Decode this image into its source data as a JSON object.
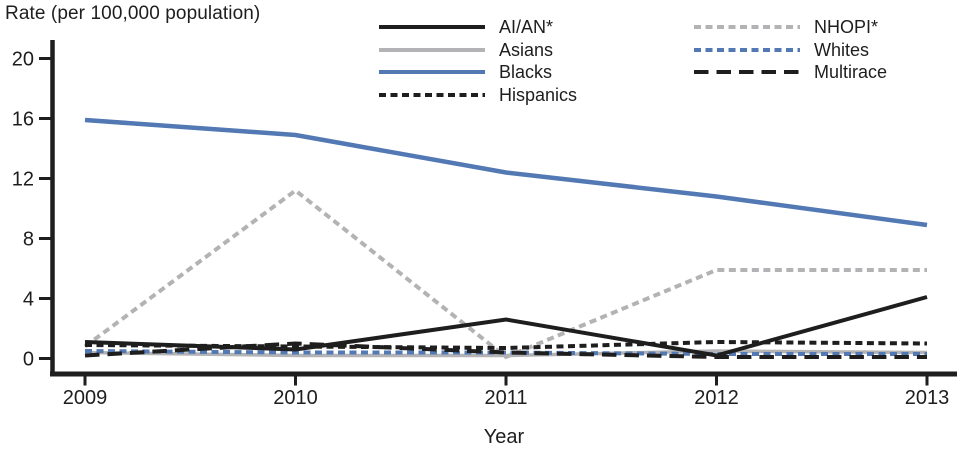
{
  "chart_data": {
    "type": "line",
    "title": "Rate (per 100,000 population)",
    "xlabel": "Year",
    "x": [
      2009,
      2010,
      2011,
      2012,
      2013
    ],
    "ylim": [
      0,
      20
    ],
    "yticks": [
      0,
      4,
      8,
      12,
      16,
      20
    ],
    "grid": false,
    "legend_position": "top-center, two columns",
    "colors": {
      "black": "#1e1e1e",
      "gray": "#b3b3b5",
      "blue": "#5279b4"
    },
    "series": [
      {
        "name": "AI/AN*",
        "color": "#1e1e1e",
        "line_style": "solid",
        "stroke_width": 4,
        "values": [
          1.1,
          0.6,
          2.6,
          0.2,
          4.1
        ]
      },
      {
        "name": "Asians",
        "color": "#b3b3b5",
        "line_style": "solid",
        "stroke_width": 3.5,
        "values": [
          0.4,
          0.2,
          0.2,
          0.5,
          0.4
        ]
      },
      {
        "name": "Blacks",
        "color": "#5279b4",
        "line_style": "solid",
        "stroke_width": 4.5,
        "values": [
          15.9,
          14.9,
          12.4,
          10.8,
          8.9
        ]
      },
      {
        "name": "Hispanics",
        "color": "#1e1e1e",
        "line_style": "short-dash",
        "stroke_width": 4,
        "values": [
          0.9,
          0.8,
          0.7,
          1.1,
          1.0
        ]
      },
      {
        "name": "NHOPI*",
        "color": "#b3b3b5",
        "line_style": "short-dash",
        "stroke_width": 4,
        "values": [
          0.8,
          11.2,
          0.1,
          5.9,
          5.9
        ]
      },
      {
        "name": "Whites",
        "color": "#5279b4",
        "line_style": "short-dash",
        "stroke_width": 4,
        "values": [
          0.5,
          0.4,
          0.4,
          0.3,
          0.3
        ]
      },
      {
        "name": "Multirace",
        "color": "#1e1e1e",
        "line_style": "long-dash",
        "stroke_width": 4,
        "values": [
          0.2,
          1.0,
          0.4,
          0.1,
          0.1
        ]
      }
    ],
    "legend_columns": [
      [
        0,
        1,
        2,
        3
      ],
      [
        4,
        5,
        6
      ]
    ]
  }
}
